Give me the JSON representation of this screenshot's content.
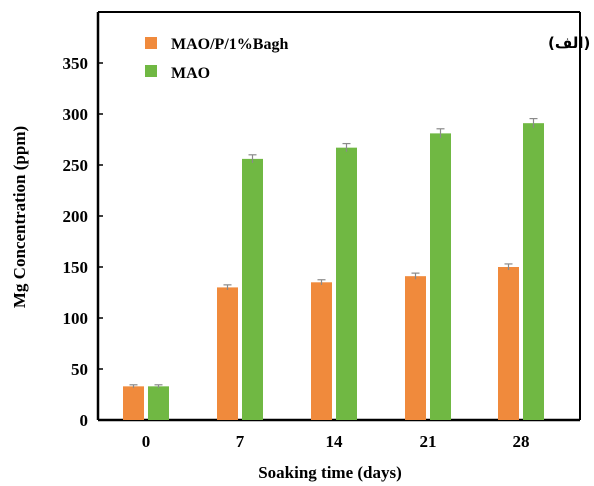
{
  "chart_data": {
    "type": "bar",
    "panel_label": "(الف)",
    "xlabel": "Soaking time (days)",
    "ylabel": "Mg Concentration (ppm)",
    "ylim": [
      0,
      400
    ],
    "yticks": [
      0,
      50,
      100,
      150,
      200,
      250,
      300,
      350
    ],
    "categories": [
      "0",
      "7",
      "14",
      "21",
      "28"
    ],
    "legend_position": "top-left",
    "series": [
      {
        "name": "MAO/P/1%Bagh",
        "color": "#f08a3c",
        "values": [
          33,
          130,
          135,
          141,
          150
        ],
        "errors": [
          1.5,
          2.5,
          2.5,
          3,
          3
        ]
      },
      {
        "name": "MAO",
        "color": "#70b843",
        "values": [
          33,
          256,
          267,
          281,
          291
        ],
        "errors": [
          1.5,
          4,
          4,
          4.5,
          4.5
        ]
      }
    ]
  }
}
